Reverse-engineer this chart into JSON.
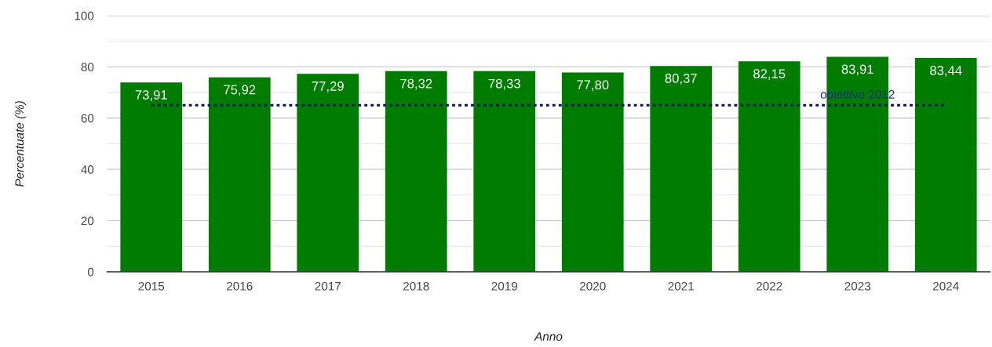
{
  "chart_data": {
    "type": "bar",
    "xlabel": "Anno",
    "ylabel": "Percentuate (%)",
    "categories": [
      "2015",
      "2016",
      "2017",
      "2018",
      "2019",
      "2020",
      "2021",
      "2022",
      "2023",
      "2024"
    ],
    "values": [
      73.91,
      75.92,
      77.29,
      78.32,
      78.33,
      77.8,
      80.37,
      82.15,
      83.91,
      83.44
    ],
    "value_labels": [
      "73,91",
      "75,92",
      "77,29",
      "78,32",
      "78,33",
      "77,80",
      "80,37",
      "82,15",
      "83,91",
      "83,44"
    ],
    "color": "#007c00",
    "ylim": [
      0,
      100
    ],
    "yticks": [
      0,
      {
        "value": 10,
        "label": null
      },
      20,
      {
        "value": 30,
        "label": null
      },
      40,
      {
        "value": 50,
        "label": null
      },
      60,
      {
        "value": 70,
        "label": null
      },
      80,
      {
        "value": 90,
        "label": null
      },
      100
    ],
    "grid": "y",
    "legend": false,
    "ref_lines": [
      {
        "axis": "y",
        "value": 65,
        "label": "obiettivo 2012",
        "color": "#0b1f5e",
        "line_style": "dotted"
      }
    ]
  }
}
